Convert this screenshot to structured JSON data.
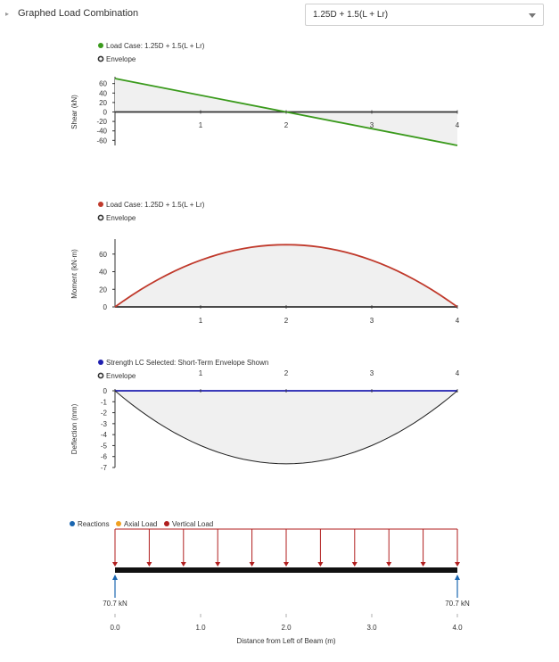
{
  "header": {
    "toggle_label": "Graphed Load Combination",
    "select_value": "1.25D + 1.5(L + Lr)"
  },
  "colors": {
    "shear": "#3a9a1c",
    "moment": "#c0392b",
    "deflection": "#1f1fb0",
    "reaction": "#1a66b0",
    "axial": "#f0a020",
    "vertical": "#b01e1e",
    "fill": "#f0f0f0",
    "baseline": "#333333"
  },
  "chart_data": [
    {
      "type": "area",
      "legend": [
        {
          "label": "Load Case: 1.25D + 1.5(L + Lr)",
          "marker": "dot-green"
        },
        {
          "label": "Envelope",
          "marker": "ring"
        }
      ],
      "ylabel": "Shear (kN)",
      "x_ticks": [
        "1",
        "2",
        "3",
        "4"
      ],
      "y_ticks": [
        "60",
        "40",
        "20",
        "0",
        "-20",
        "-40",
        "-60"
      ],
      "ylim": [
        -70.7,
        70.7
      ],
      "xlim": [
        0,
        4
      ],
      "series": [
        {
          "x": [
            0,
            4
          ],
          "y": [
            70.7,
            -70.7
          ]
        }
      ]
    },
    {
      "type": "area",
      "legend": [
        {
          "label": "Load Case: 1.25D + 1.5(L + Lr)",
          "marker": "dot-red"
        },
        {
          "label": "Envelope",
          "marker": "ring"
        }
      ],
      "ylabel": "Moment (kN·m)",
      "x_ticks": [
        "1",
        "2",
        "3",
        "4"
      ],
      "y_ticks": [
        "60",
        "40",
        "20",
        "0"
      ],
      "ylim": [
        0,
        75
      ],
      "xlim": [
        0,
        4
      ],
      "series": [
        {
          "x": [
            0,
            0.5,
            1,
            1.5,
            2,
            2.5,
            3,
            3.5,
            4
          ],
          "y": [
            0,
            30.9,
            53.0,
            66.3,
            70.7,
            66.3,
            53.0,
            30.9,
            0
          ]
        }
      ]
    },
    {
      "type": "area",
      "legend": [
        {
          "label": "Strength LC Selected: Short-Term Envelope Shown",
          "marker": "dot-blue"
        },
        {
          "label": "Envelope",
          "marker": "ring"
        }
      ],
      "ylabel": "Deflection (mm)",
      "x_ticks": [
        "1",
        "2",
        "3",
        "4"
      ],
      "y_ticks": [
        "0",
        "-1",
        "-2",
        "-3",
        "-4",
        "-5",
        "-6",
        "-7"
      ],
      "ylim": [
        -7,
        0
      ],
      "xlim": [
        0,
        4
      ],
      "series": [
        {
          "x": [
            0,
            0.5,
            1,
            1.5,
            2,
            2.5,
            3,
            3.5,
            4
          ],
          "y": [
            0,
            -2.59,
            -4.76,
            -6.17,
            -6.66,
            -6.17,
            -4.76,
            -2.59,
            0
          ]
        }
      ]
    }
  ],
  "load_diagram": {
    "legend": [
      {
        "label": "Reactions",
        "marker": "dot-reaction"
      },
      {
        "label": "Axial Load",
        "marker": "dot-axial"
      },
      {
        "label": "Vertical Load",
        "marker": "dot-vertical"
      }
    ],
    "load_positions": [
      0,
      0.4,
      0.8,
      1.2,
      1.6,
      2.0,
      2.4,
      2.8,
      3.2,
      3.6,
      4.0
    ],
    "reactions": [
      {
        "x": 0,
        "label": "70.7 kN"
      },
      {
        "x": 4,
        "label": "70.7 kN"
      }
    ],
    "x_ticks": [
      "0.0",
      "1.0",
      "2.0",
      "3.0",
      "4.0"
    ],
    "xlabel": "Distance from Left of Beam (m)"
  }
}
